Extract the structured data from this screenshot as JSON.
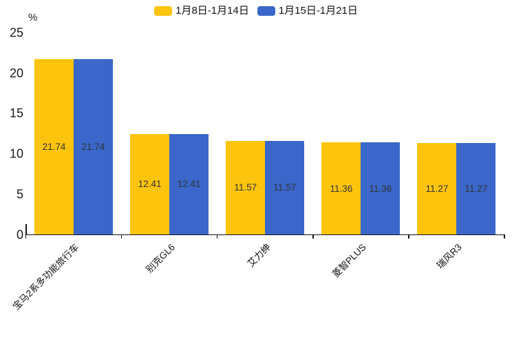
{
  "chart_data": {
    "type": "bar",
    "title": "",
    "unit_label": "%",
    "categories": [
      "宝马2系多功能旅行车",
      "别克GL6",
      "艾力绅",
      "菱智PLUS",
      "瑞风R3"
    ],
    "series": [
      {
        "name": "1月8日-1月14日",
        "color": "#FCC40D",
        "values": [
          21.74,
          12.41,
          11.57,
          11.36,
          11.27
        ]
      },
      {
        "name": "1月15日-1月21日",
        "color": "#3A67C9",
        "values": [
          21.74,
          12.41,
          11.57,
          11.36,
          11.27
        ]
      }
    ],
    "value_labels": [
      [
        "21.74",
        "12.41",
        "11.57",
        "11.36",
        "11.27"
      ],
      [
        "21.74",
        "12.41",
        "11.57",
        "11.36",
        "11.27"
      ]
    ],
    "xlabel": "",
    "ylabel": "%",
    "ylim": [
      0,
      25
    ],
    "yticks": [
      25,
      20,
      15,
      10,
      5,
      0
    ],
    "grid": false,
    "legend_position": "top",
    "x_label_rotation_deg": 45
  },
  "colors": {
    "background": "#ffffff",
    "axis": "#111111",
    "tick_text": "#1a1a1a",
    "value_text": "#333333",
    "series_yellow": "#FCC40D",
    "series_blue": "#3A67C9"
  }
}
